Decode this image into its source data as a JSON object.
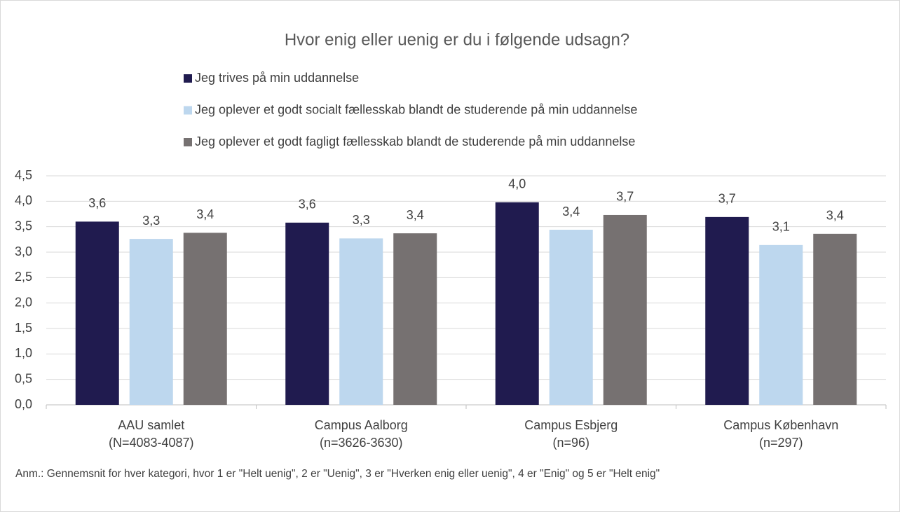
{
  "chart_data": {
    "type": "bar",
    "title": "Hvor enig eller uenig er du i følgende udsagn?",
    "categories": [
      [
        "AAU samlet",
        "(N=4083-4087)"
      ],
      [
        "Campus Aalborg",
        "(n=3626-3630)"
      ],
      [
        "Campus Esbjerg",
        "(n=96)"
      ],
      [
        "Campus København",
        "(n=297)"
      ]
    ],
    "series": [
      {
        "name": "Jeg trives på min uddannelse",
        "color": "#201b4f",
        "values": [
          3.6,
          3.58,
          3.98,
          3.69
        ],
        "value_labels": [
          "3,6",
          "3,6",
          "4,0",
          "3,7"
        ]
      },
      {
        "name": "Jeg oplever et godt socialt fællesskab blandt de studerende på min uddannelse",
        "color": "#bdd7ee",
        "values": [
          3.26,
          3.27,
          3.44,
          3.14
        ],
        "value_labels": [
          "3,3",
          "3,3",
          "3,4",
          "3,1"
        ]
      },
      {
        "name": "Jeg oplever et godt fagligt fællesskab blandt de studerende på min uddannelse",
        "color": "#767171",
        "values": [
          3.38,
          3.37,
          3.73,
          3.36
        ],
        "value_labels": [
          "3,4",
          "3,4",
          "3,7",
          "3,4"
        ]
      }
    ],
    "ylim": [
      0,
      4.5
    ],
    "yticks": [
      {
        "value": 0,
        "label": "0,0"
      },
      {
        "value": 0.5,
        "label": "0,5"
      },
      {
        "value": 1,
        "label": "1,0"
      },
      {
        "value": 1.5,
        "label": "1,5"
      },
      {
        "value": 2,
        "label": "2,0"
      },
      {
        "value": 2.5,
        "label": "2,5"
      },
      {
        "value": 3,
        "label": "3,0"
      },
      {
        "value": 3.5,
        "label": "3,5"
      },
      {
        "value": 4,
        "label": "4,0"
      },
      {
        "value": 4.5,
        "label": "4,5"
      }
    ],
    "grid": true,
    "legend": "top",
    "annotation": "Anm.: Gennemsnit for hver kategori, hvor 1 er \"Helt uenig\", 2 er \"Uenig\", 3 er \"Hverken enig eller uenig\", 4 er \"Enig\" og 5 er \"Helt enig\""
  }
}
